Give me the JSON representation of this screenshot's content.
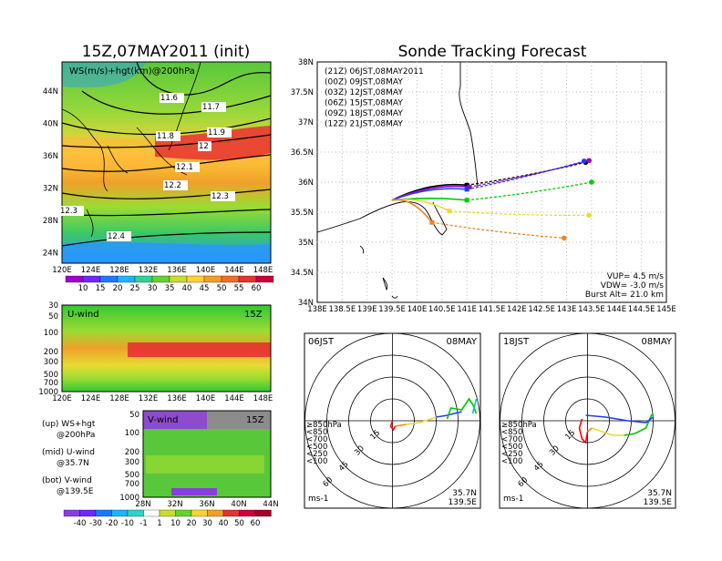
{
  "title_left": "15Z,07MAY2011 (init)",
  "title_right": "Sonde Tracking Forecast",
  "map_panel": {
    "label": "WS(m/s)+hgt(km)@200hPa",
    "lat_ticks": [
      "44N",
      "40N",
      "36N",
      "32N",
      "28N",
      "24N"
    ],
    "lon_ticks": [
      "120E",
      "124E",
      "128E",
      "132E",
      "136E",
      "140E",
      "144E",
      "148E"
    ],
    "contour_labels": [
      "11.6",
      "11.7",
      "11.8",
      "11.9",
      "12",
      "12.1",
      "12.2",
      "12.3",
      "12.3",
      "12.4"
    ],
    "colorbar": [
      "10",
      "15",
      "20",
      "25",
      "30",
      "35",
      "40",
      "45",
      "50",
      "55",
      "60"
    ]
  },
  "u_panel": {
    "label": "U-wind",
    "time": "15Z",
    "p_ticks": [
      "30",
      "50",
      "100",
      "200",
      "300",
      "500",
      "700",
      "1000"
    ],
    "lon_ticks": [
      "120E",
      "124E",
      "128E",
      "132E",
      "136E",
      "140E",
      "144E",
      "148E"
    ]
  },
  "v_panel": {
    "label": "V-wind",
    "time": "15Z",
    "p_ticks": [
      "50",
      "100",
      "200",
      "300",
      "500",
      "700",
      "1000"
    ],
    "lat_ticks": [
      "28N",
      "32N",
      "36N",
      "40N",
      "44N"
    ]
  },
  "notes": [
    {
      "a": "(up) WS+hgt",
      "b": "@200hPa"
    },
    {
      "a": "(mid) U-wind",
      "b": "@35.7N"
    },
    {
      "a": "(bot) V-wind",
      "b": "@139.5E"
    }
  ],
  "bottom_colorbar": [
    "-40",
    "-30",
    "-20",
    "-10",
    "-1",
    "1",
    "10",
    "20",
    "30",
    "40",
    "50",
    "60"
  ],
  "track_legend": [
    {
      "text": "(21Z) 06JST,08MAY2011",
      "color": "#000000"
    },
    {
      "text": "(00Z) 09JST,08MAY",
      "color": "#a000c8"
    },
    {
      "text": "(03Z) 12JST,08MAY",
      "color": "#1e3cff"
    },
    {
      "text": "(06Z) 15JST,08MAY",
      "color": "#00c800"
    },
    {
      "text": "(09Z) 18JST,08MAY",
      "color": "#e6dc32"
    },
    {
      "text": "(12Z) 21JST,08MAY",
      "color": "#f08228"
    }
  ],
  "track_info": [
    "VUP= 4.5 m/s",
    "VDW= -3.0 m/s",
    "Burst Alt= 21.0 km"
  ],
  "chart_data": {
    "type": "line",
    "title": "Sonde Tracking Forecast",
    "xlabel": "",
    "ylabel": "",
    "xlim": [
      138,
      145
    ],
    "ylim": [
      34,
      38
    ],
    "x_ticks": [
      "138E",
      "138.5E",
      "139E",
      "139.5E",
      "140E",
      "140.5E",
      "141E",
      "141.5E",
      "142E",
      "142.5E",
      "143E",
      "143.5E",
      "144E",
      "144.5E",
      "145E"
    ],
    "y_ticks": [
      "38N",
      "37.5N",
      "37N",
      "36.5N",
      "36N",
      "35.5N",
      "35N",
      "34.5N",
      "34N"
    ],
    "series": [
      {
        "name": "(21Z) 06JST,08MAY2011",
        "color": "#000000",
        "burst": [
          141.0,
          35.95
        ],
        "end": [
          143.38,
          36.33
        ]
      },
      {
        "name": "(00Z) 09JST,08MAY",
        "color": "#a000c8",
        "burst": [
          141.05,
          35.92
        ],
        "end": [
          143.45,
          36.36
        ]
      },
      {
        "name": "(03Z) 12JST,08MAY",
        "color": "#1e3cff",
        "burst": [
          141.0,
          35.88
        ],
        "end": [
          143.35,
          36.35
        ]
      },
      {
        "name": "(06Z) 15JST,08MAY",
        "color": "#00c800",
        "burst": [
          141.0,
          35.7
        ],
        "end": [
          143.5,
          36.0
        ]
      },
      {
        "name": "(09Z) 18JST,08MAY",
        "color": "#e6dc32",
        "burst": [
          140.65,
          35.52
        ],
        "end": [
          143.45,
          35.45
        ]
      },
      {
        "name": "(12Z) 21JST,08MAY",
        "color": "#f08228",
        "burst": [
          140.3,
          35.33
        ],
        "end": [
          142.95,
          35.07
        ]
      }
    ],
    "launch": [
      139.5,
      35.7
    ]
  },
  "hodograph_06": {
    "left": "06JST",
    "right": "08MAY",
    "lat": "35.7N",
    "lon": "139.5E",
    "unit": "ms-1",
    "rings": [
      "15",
      "30",
      "45",
      "60"
    ],
    "levels": [
      {
        "text": "≥850hPa",
        "color": "#ff0000"
      },
      {
        "text": "<850",
        "color": "#f08228"
      },
      {
        "text": "<700",
        "color": "#e6dc32"
      },
      {
        "text": "<500",
        "color": "#00c800"
      },
      {
        "text": "<250",
        "color": "#00c8c8"
      },
      {
        "text": "<100",
        "color": "#1e3cff"
      }
    ]
  },
  "hodograph_18": {
    "left": "18JST",
    "right": "08MAY",
    "lat": "35.7N",
    "lon": "139.5E",
    "unit": "ms-1",
    "rings": [
      "15",
      "30",
      "45",
      "60"
    ],
    "levels": [
      {
        "text": "≥850hPa",
        "color": "#ff0000"
      },
      {
        "text": "<850",
        "color": "#f08228"
      },
      {
        "text": "<700",
        "color": "#e6dc32"
      },
      {
        "text": "<500",
        "color": "#00c800"
      },
      {
        "text": "<250",
        "color": "#00c8c8"
      },
      {
        "text": "<100",
        "color": "#1e3cff"
      }
    ]
  }
}
